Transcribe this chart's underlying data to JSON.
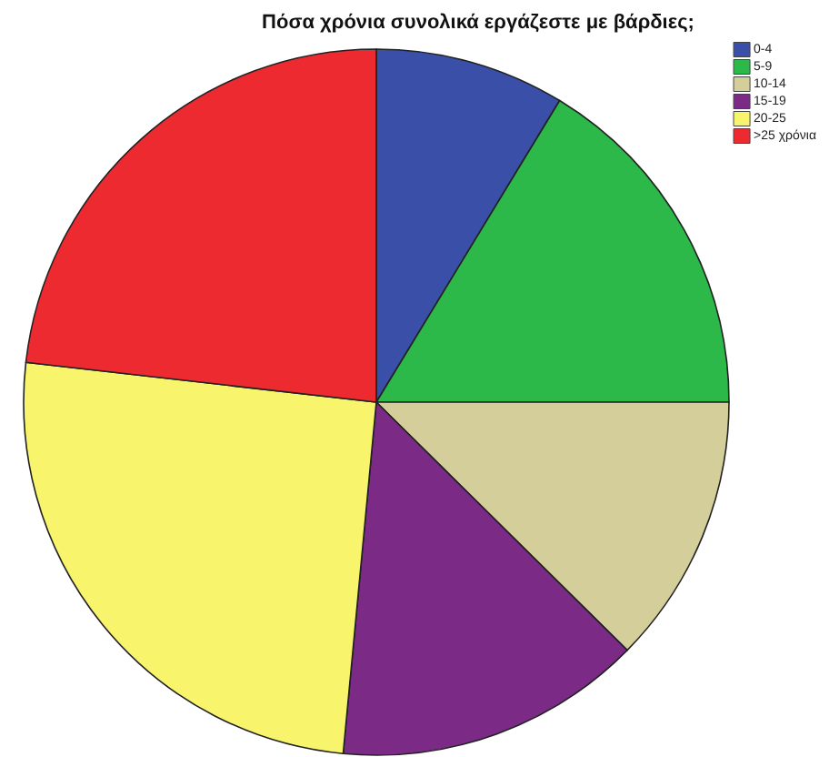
{
  "chart_data": {
    "type": "pie",
    "title": "Πόσα χρόνια συνολικά εργάζεστε με βάρδιες;",
    "categories": [
      "0-4",
      "5-9",
      "10-14",
      "15-19",
      "20-25",
      ">25 χρόνια"
    ],
    "values": [
      8.7,
      16.3,
      12.4,
      14.1,
      25.3,
      23.2
    ],
    "colors": [
      "#3a4fa8",
      "#2db84a",
      "#d4cf9a",
      "#7b2a86",
      "#f8f56c",
      "#ee2a31"
    ],
    "legend": "top right"
  }
}
